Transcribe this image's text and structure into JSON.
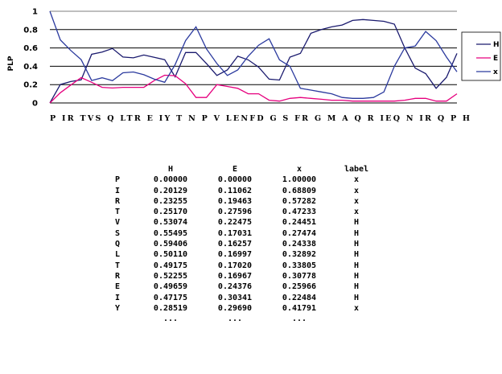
{
  "chart_data": {
    "type": "line",
    "ylabel": "PLP",
    "ylim": [
      0,
      1
    ],
    "yticks": [
      "0",
      "0.2",
      "0.4",
      "0.6",
      "0.8",
      "1"
    ],
    "xlabel_sequence": "P IR TVS Q LTR E IY T N P V LENFD G S FR G M A Q R IEQ N IR Q P H",
    "x": [
      "P",
      "I",
      "R",
      "T",
      "V",
      "S",
      "Q",
      "L",
      "T",
      "R",
      "E",
      "I",
      "Y",
      "T",
      "N",
      "P",
      "V",
      "L",
      "E",
      "N",
      "F",
      "D",
      "G",
      "S",
      "F",
      "R",
      "G",
      "M",
      "A",
      "Q",
      "R",
      "I",
      "E",
      "Q",
      "N",
      "I",
      "R",
      "Q",
      "P",
      "H"
    ],
    "series": [
      {
        "name": "H",
        "color": "#1a1a6e",
        "values": [
          0.0,
          0.201,
          0.233,
          0.252,
          0.531,
          0.555,
          0.594,
          0.501,
          0.492,
          0.523,
          0.497,
          0.472,
          0.285,
          0.55,
          0.55,
          0.43,
          0.3,
          0.36,
          0.51,
          0.47,
          0.39,
          0.26,
          0.25,
          0.5,
          0.54,
          0.76,
          0.8,
          0.83,
          0.85,
          0.9,
          0.91,
          0.9,
          0.89,
          0.86,
          0.6,
          0.38,
          0.32,
          0.16,
          0.28,
          0.54
        ]
      },
      {
        "name": "E",
        "color": "#e6007e",
        "values": [
          0.0,
          0.111,
          0.195,
          0.276,
          0.225,
          0.17,
          0.163,
          0.17,
          0.17,
          0.17,
          0.244,
          0.303,
          0.297,
          0.21,
          0.06,
          0.06,
          0.2,
          0.18,
          0.16,
          0.1,
          0.1,
          0.03,
          0.02,
          0.05,
          0.06,
          0.05,
          0.04,
          0.03,
          0.03,
          0.02,
          0.02,
          0.02,
          0.02,
          0.02,
          0.03,
          0.05,
          0.05,
          0.02,
          0.02,
          0.1
        ]
      },
      {
        "name": "x",
        "color": "#2b3a9e",
        "values": [
          1.0,
          0.688,
          0.573,
          0.472,
          0.245,
          0.275,
          0.243,
          0.329,
          0.338,
          0.308,
          0.26,
          0.225,
          0.418,
          0.68,
          0.83,
          0.59,
          0.43,
          0.3,
          0.36,
          0.51,
          0.63,
          0.7,
          0.47,
          0.4,
          0.16,
          0.14,
          0.12,
          0.1,
          0.06,
          0.05,
          0.05,
          0.06,
          0.12,
          0.4,
          0.6,
          0.62,
          0.78,
          0.68,
          0.5,
          0.34
        ]
      }
    ],
    "grid": "horizontal",
    "legend": "right",
    "legend_entries": [
      "H",
      "E",
      "x"
    ]
  },
  "table": {
    "headers": [
      "",
      "H",
      "E",
      "x",
      "label"
    ],
    "rows": [
      [
        "P",
        "0.00000",
        "0.00000",
        "1.00000",
        "x"
      ],
      [
        "I",
        "0.20129",
        "0.11062",
        "0.68809",
        "x"
      ],
      [
        "R",
        "0.23255",
        "0.19463",
        "0.57282",
        "x"
      ],
      [
        "T",
        "0.25170",
        "0.27596",
        "0.47233",
        "x"
      ],
      [
        "V",
        "0.53074",
        "0.22475",
        "0.24451",
        "H"
      ],
      [
        "S",
        "0.55495",
        "0.17031",
        "0.27474",
        "H"
      ],
      [
        "Q",
        "0.59406",
        "0.16257",
        "0.24338",
        "H"
      ],
      [
        "L",
        "0.50110",
        "0.16997",
        "0.32892",
        "H"
      ],
      [
        "T",
        "0.49175",
        "0.17020",
        "0.33805",
        "H"
      ],
      [
        "R",
        "0.52255",
        "0.16967",
        "0.30778",
        "H"
      ],
      [
        "E",
        "0.49659",
        "0.24376",
        "0.25966",
        "H"
      ],
      [
        "I",
        "0.47175",
        "0.30341",
        "0.22484",
        "H"
      ],
      [
        "Y",
        "0.28519",
        "0.29690",
        "0.41791",
        "x"
      ]
    ],
    "ellipsis": [
      "",
      "...",
      "...",
      "...",
      ""
    ]
  }
}
